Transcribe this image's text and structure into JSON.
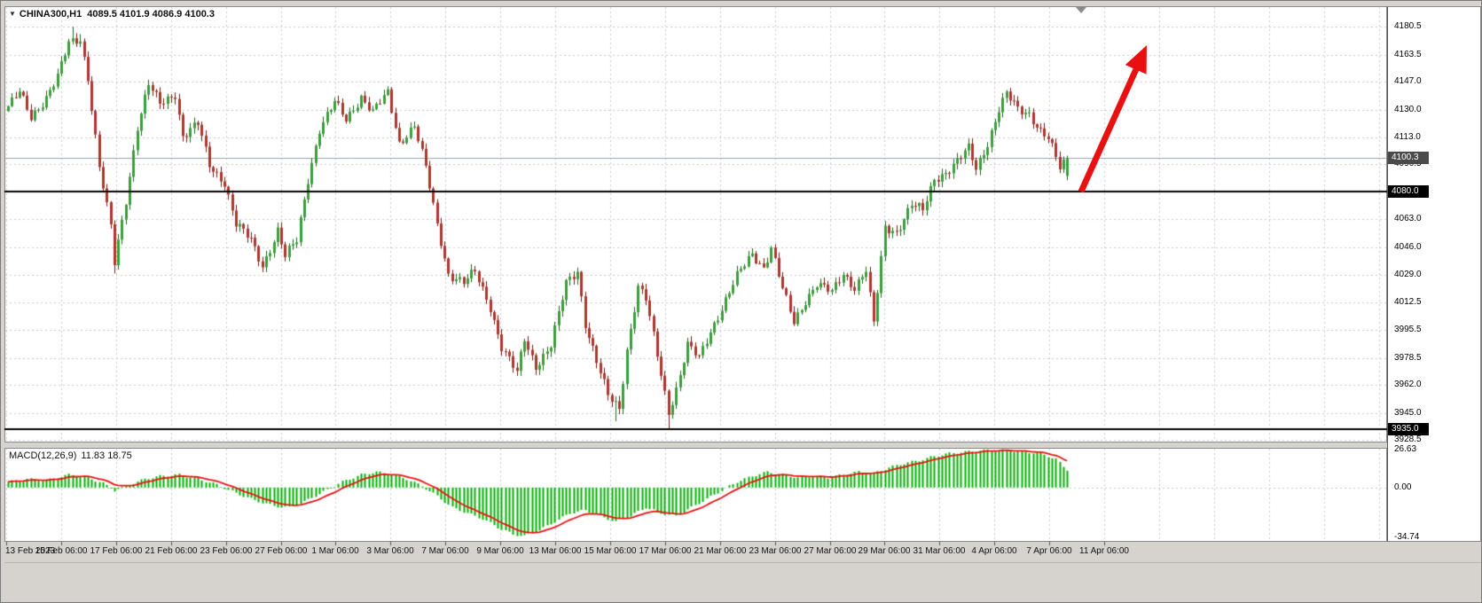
{
  "window": {
    "bg": "#d6d3ce"
  },
  "symbol_bar": {
    "marker": "▼",
    "symbol": "CHINA300,H1",
    "ohlc_text": "4089.5 4101.9 4086.9 4100.3"
  },
  "macd_panel": {
    "label_name": "MACD(12,26,9)",
    "label_values": "11.83 18.75"
  },
  "badges": {
    "current_price": "4100.3",
    "resistance": "4080.0",
    "support": "3935.0"
  },
  "colors": {
    "bull_fill": "#3c9e3c",
    "bull_stroke": "#1d671d",
    "bear_fill": "#ad372e",
    "bear_stroke": "#6e1d16",
    "grid": "#c8c8d8",
    "macd_hist": "#00b200",
    "macd_signal": "#ee1111",
    "level_line": "#000000",
    "current_line": "#9aa0b4",
    "arrow": "#e81010"
  },
  "chart_data": {
    "type": "candlestick",
    "title": "CHINA300,H1",
    "symbol": "CHINA300",
    "timeframe": "H1",
    "current_ohlc": {
      "open": 4089.5,
      "high": 4101.9,
      "low": 4086.9,
      "close": 4100.3
    },
    "price_axis_ticks": [
      "4180.5",
      "4163.5",
      "4147.0",
      "4130.0",
      "4113.0",
      "4096.5",
      "4063.0",
      "4046.0",
      "4029.0",
      "4012.5",
      "3995.5",
      "3978.5",
      "3962.0",
      "3945.0",
      "3928.5"
    ],
    "price_axis_values": [
      4180.5,
      4163.5,
      4147.0,
      4130.0,
      4113.0,
      4096.5,
      4063.0,
      4046.0,
      4029.0,
      4012.5,
      3995.5,
      3978.5,
      3962.0,
      3945.0,
      3928.5
    ],
    "price_ylim": [
      3927,
      4193
    ],
    "time_axis_ticks": [
      "13 Feb 2023",
      "15 Feb 06:00",
      "17 Feb 06:00",
      "21 Feb 06:00",
      "23 Feb 06:00",
      "27 Feb 06:00",
      "1 Mar 06:00",
      "3 Mar 06:00",
      "7 Mar 06:00",
      "9 Mar 06:00",
      "13 Mar 06:00",
      "15 Mar 06:00",
      "17 Mar 06:00",
      "21 Mar 06:00",
      "23 Mar 06:00",
      "27 Mar 06:00",
      "29 Mar 06:00",
      "31 Mar 06:00",
      "4 Apr 06:00",
      "7 Apr 06:00",
      "11 Apr 06:00"
    ],
    "levels": {
      "resistance": 4080.0,
      "support": 3935.0,
      "current_price": 4100.3
    },
    "num_bars": 280,
    "close_anchors": [
      [
        0,
        4132
      ],
      [
        3,
        4140
      ],
      [
        6,
        4125
      ],
      [
        10,
        4138
      ],
      [
        13,
        4150
      ],
      [
        16,
        4170
      ],
      [
        19,
        4173
      ],
      [
        21,
        4150
      ],
      [
        24,
        4095
      ],
      [
        27,
        4058
      ],
      [
        28,
        4036
      ],
      [
        31,
        4075
      ],
      [
        34,
        4120
      ],
      [
        37,
        4145
      ],
      [
        40,
        4133
      ],
      [
        44,
        4140
      ],
      [
        46,
        4114
      ],
      [
        50,
        4121
      ],
      [
        53,
        4096
      ],
      [
        57,
        4086
      ],
      [
        60,
        4060
      ],
      [
        64,
        4050
      ],
      [
        67,
        4035
      ],
      [
        71,
        4056
      ],
      [
        73,
        4040
      ],
      [
        76,
        4050
      ],
      [
        79,
        4088
      ],
      [
        82,
        4118
      ],
      [
        86,
        4134
      ],
      [
        89,
        4124
      ],
      [
        93,
        4138
      ],
      [
        96,
        4128
      ],
      [
        100,
        4140
      ],
      [
        103,
        4110
      ],
      [
        107,
        4120
      ],
      [
        110,
        4094
      ],
      [
        113,
        4060
      ],
      [
        116,
        4030
      ],
      [
        120,
        4024
      ],
      [
        123,
        4031
      ],
      [
        127,
        4010
      ],
      [
        130,
        3985
      ],
      [
        134,
        3969
      ],
      [
        136,
        3990
      ],
      [
        139,
        3974
      ],
      [
        143,
        3986
      ],
      [
        147,
        4024
      ],
      [
        150,
        4032
      ],
      [
        152,
        4000
      ],
      [
        155,
        3976
      ],
      [
        158,
        3955
      ],
      [
        161,
        3948
      ],
      [
        163,
        3984
      ],
      [
        166,
        4022
      ],
      [
        168,
        4014
      ],
      [
        171,
        3980
      ],
      [
        174,
        3946
      ],
      [
        176,
        3960
      ],
      [
        179,
        3986
      ],
      [
        182,
        3978
      ],
      [
        185,
        3995
      ],
      [
        189,
        4014
      ],
      [
        192,
        4028
      ],
      [
        196,
        4042
      ],
      [
        199,
        4034
      ],
      [
        201,
        4046
      ],
      [
        204,
        4020
      ],
      [
        207,
        4000
      ],
      [
        210,
        4014
      ],
      [
        213,
        4024
      ],
      [
        217,
        4018
      ],
      [
        220,
        4030
      ],
      [
        223,
        4022
      ],
      [
        226,
        4032
      ],
      [
        228,
        3999
      ],
      [
        231,
        4058
      ],
      [
        234,
        4056
      ],
      [
        238,
        4072
      ],
      [
        241,
        4068
      ],
      [
        244,
        4088
      ],
      [
        247,
        4092
      ],
      [
        250,
        4098
      ],
      [
        253,
        4106
      ],
      [
        255,
        4094
      ],
      [
        258,
        4110
      ],
      [
        261,
        4130
      ],
      [
        263,
        4139
      ],
      [
        266,
        4130
      ],
      [
        269,
        4128
      ],
      [
        272,
        4117
      ],
      [
        274,
        4112
      ],
      [
        277,
        4094
      ],
      [
        279,
        4100.3
      ]
    ],
    "wick_events": [
      {
        "bar": 17,
        "high": 4180.5
      },
      {
        "bar": 19,
        "high": 4176
      },
      {
        "bar": 28,
        "low": 4030
      },
      {
        "bar": 160,
        "low": 3940
      },
      {
        "bar": 174,
        "low": 3935.5
      }
    ],
    "macd": {
      "params": [
        12,
        26,
        9
      ],
      "current_main": 11.83,
      "current_signal": 18.75,
      "axis_ticks": [
        "26.63",
        "0.00",
        "-34.74"
      ],
      "axis_values": [
        26.63,
        0,
        -34.74
      ],
      "ylim": [
        -38.1,
        27.9
      ],
      "hist_anchors": [
        [
          0,
          4
        ],
        [
          5,
          6
        ],
        [
          10,
          5
        ],
        [
          16,
          9
        ],
        [
          20,
          8
        ],
        [
          25,
          3
        ],
        [
          28,
          -2
        ],
        [
          32,
          2
        ],
        [
          36,
          6
        ],
        [
          40,
          8
        ],
        [
          45,
          9
        ],
        [
          50,
          6
        ],
        [
          55,
          2
        ],
        [
          60,
          -4
        ],
        [
          65,
          -9
        ],
        [
          70,
          -13
        ],
        [
          74,
          -14
        ],
        [
          78,
          -10
        ],
        [
          83,
          -3
        ],
        [
          88,
          4
        ],
        [
          93,
          9
        ],
        [
          97,
          11
        ],
        [
          101,
          9
        ],
        [
          105,
          6
        ],
        [
          109,
          1
        ],
        [
          113,
          -6
        ],
        [
          117,
          -14
        ],
        [
          121,
          -18
        ],
        [
          125,
          -22
        ],
        [
          129,
          -28
        ],
        [
          133,
          -33
        ],
        [
          136,
          -34
        ],
        [
          140,
          -30
        ],
        [
          144,
          -24
        ],
        [
          148,
          -18
        ],
        [
          152,
          -16
        ],
        [
          156,
          -20
        ],
        [
          160,
          -24
        ],
        [
          164,
          -20
        ],
        [
          168,
          -14
        ],
        [
          172,
          -18
        ],
        [
          176,
          -20
        ],
        [
          180,
          -14
        ],
        [
          184,
          -8
        ],
        [
          188,
          -2
        ],
        [
          192,
          4
        ],
        [
          196,
          8
        ],
        [
          200,
          11
        ],
        [
          204,
          9
        ],
        [
          208,
          7
        ],
        [
          212,
          8
        ],
        [
          216,
          7
        ],
        [
          220,
          9
        ],
        [
          224,
          11
        ],
        [
          228,
          10
        ],
        [
          232,
          14
        ],
        [
          236,
          17
        ],
        [
          240,
          19
        ],
        [
          244,
          22
        ],
        [
          248,
          24
        ],
        [
          252,
          25
        ],
        [
          256,
          26
        ],
        [
          260,
          26.5
        ],
        [
          264,
          26
        ],
        [
          268,
          25
        ],
        [
          272,
          24
        ],
        [
          276,
          20
        ],
        [
          279,
          11.83
        ]
      ]
    },
    "annotation": {
      "shape": "arrow",
      "direction": "up-right",
      "color": "#e81010"
    }
  }
}
